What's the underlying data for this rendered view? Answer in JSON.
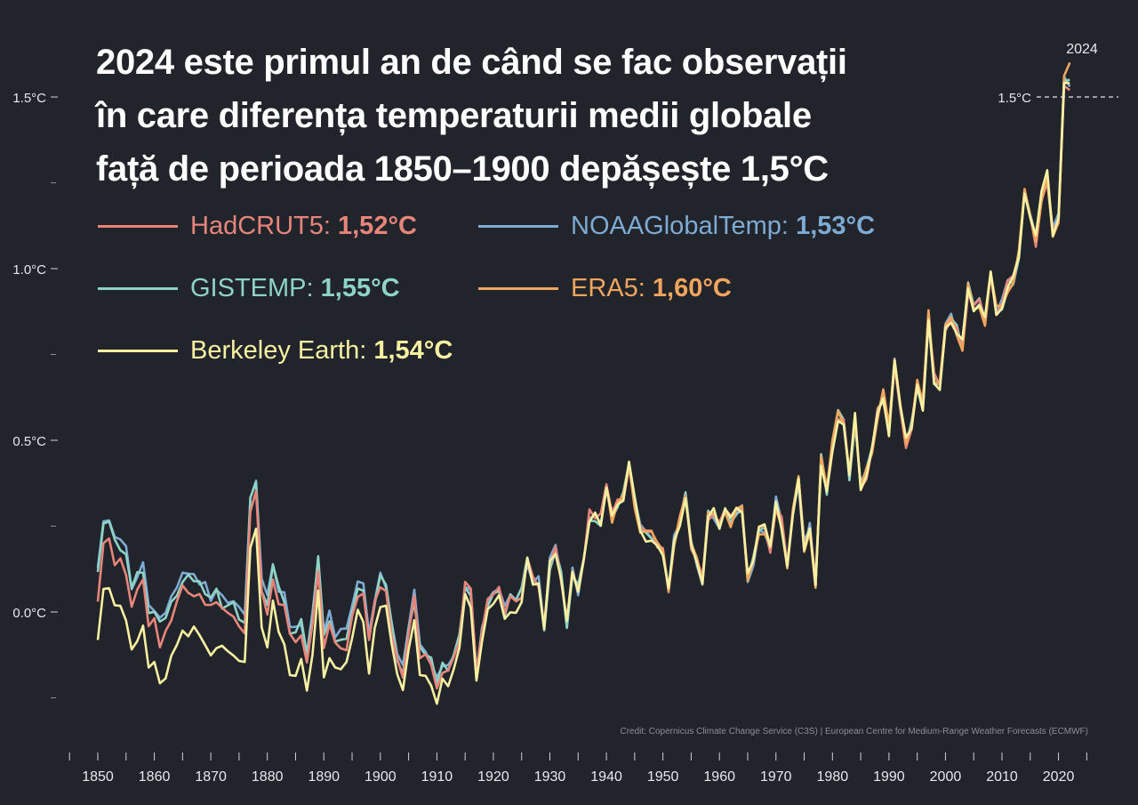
{
  "title_lines": [
    "2024 este primul an de când se fac observații",
    "în care diferența temperaturii medii globale",
    "față de perioada 1850–1900 depășește 1,5°C"
  ],
  "credit": "Credit:  Copernicus Climate Change Service (C3S) | European Centre for Medium-Range Weather Forecasts (ECMWF)",
  "legend": [
    {
      "name": "HadCRUT5:",
      "value": "1,52°C",
      "color": "#e8857b"
    },
    {
      "name": "NOAAGlobalTemp:",
      "value": "1,53°C",
      "color": "#7eabd4"
    },
    {
      "name": "GISTEMP:",
      "value": "1,55°C",
      "color": "#8ed4c6"
    },
    {
      "name": "ERA5:",
      "value": "1,60°C",
      "color": "#f2a55c"
    },
    {
      "name": "Berkeley Earth:",
      "value": "1,54°C",
      "color": "#f6f0a0"
    }
  ],
  "chart_data": {
    "type": "line",
    "title": "2024 este primul an de când se fac observații în care diferența temperaturii medii globale față de perioada 1850–1900 depășește 1,5°C",
    "xlabel": "",
    "ylabel": "",
    "xlim": [
      1850,
      2024
    ],
    "ylim": [
      -0.25,
      1.6
    ],
    "x_ticks": [
      1850,
      1860,
      1870,
      1880,
      1890,
      1900,
      1910,
      1920,
      1930,
      1940,
      1950,
      1960,
      1970,
      1980,
      1990,
      2000,
      2010,
      2020
    ],
    "y_ticks": [
      {
        "value": 0.0,
        "label": "0.0°C"
      },
      {
        "value": 0.5,
        "label": "0.5°C"
      },
      {
        "value": 1.0,
        "label": "1.0°C"
      },
      {
        "value": 1.5,
        "label": "1.5°C"
      }
    ],
    "y_minor_ticks": [
      -0.25,
      0.25,
      0.75,
      1.25
    ],
    "reference_line": {
      "value": 1.5,
      "label": "1.5°C"
    },
    "end_label": "2024",
    "grid": false,
    "legend_position": "top-left",
    "base_years": [
      1850,
      2024
    ],
    "base": [
      -0.05,
      0.1,
      0.13,
      0.06,
      0.05,
      0.03,
      -0.08,
      -0.04,
      -0.01,
      -0.12,
      -0.12,
      -0.17,
      -0.15,
      -0.1,
      -0.06,
      -0.02,
      -0.02,
      -0.02,
      -0.04,
      -0.05,
      -0.07,
      -0.06,
      -0.08,
      -0.09,
      -0.09,
      -0.11,
      -0.13,
      0.23,
      0.28,
      -0.02,
      -0.06,
      0.05,
      -0.02,
      -0.05,
      -0.14,
      -0.15,
      -0.12,
      -0.21,
      -0.09,
      0.07,
      -0.16,
      -0.09,
      -0.14,
      -0.14,
      -0.14,
      -0.06,
      0.01,
      0.01,
      -0.14,
      -0.02,
      0.05,
      0.03,
      -0.09,
      -0.18,
      -0.21,
      -0.09,
      0.0,
      -0.16,
      -0.17,
      -0.19,
      -0.24,
      -0.2,
      -0.19,
      -0.17,
      -0.1,
      0.05,
      0.04,
      -0.21,
      -0.08,
      0.01,
      0.02,
      0.06,
      -0.01,
      0.02,
      0.02,
      0.05,
      0.14,
      0.08,
      0.09,
      -0.05,
      0.14,
      0.18,
      0.1,
      -0.04,
      0.11,
      0.06,
      0.16,
      0.28,
      0.28,
      0.27,
      0.36,
      0.28,
      0.32,
      0.34,
      0.44,
      0.32,
      0.24,
      0.22,
      0.22,
      0.19,
      0.17,
      0.07,
      0.21,
      0.27,
      0.34,
      0.19,
      0.15,
      0.09,
      0.28,
      0.29,
      0.26,
      0.3,
      0.26,
      0.29,
      0.3,
      0.1,
      0.15,
      0.23,
      0.24,
      0.19,
      0.32,
      0.26,
      0.14,
      0.3,
      0.38,
      0.19,
      0.25,
      0.09,
      0.44,
      0.36,
      0.48,
      0.57,
      0.56,
      0.4,
      0.56,
      0.37,
      0.4,
      0.47,
      0.58,
      0.63,
      0.53,
      0.72,
      0.6,
      0.49,
      0.55,
      0.66,
      0.6,
      0.86,
      0.68,
      0.66,
      0.82,
      0.85,
      0.82,
      0.78,
      0.94,
      0.89,
      0.9,
      0.84,
      0.98,
      0.88,
      0.9,
      0.95,
      0.97,
      1.05,
      1.23,
      1.14,
      1.08,
      1.21,
      1.27,
      1.11,
      1.15,
      1.55,
      1.57
    ],
    "series": [
      {
        "name": "HadCRUT5",
        "offset_early": 0.1,
        "noise": 0.02
      },
      {
        "name": "NOAAGlobalTemp",
        "offset_early": 0.16,
        "noise": 0.02
      },
      {
        "name": "GISTEMP",
        "offset_early": 0.15,
        "noise": 0.02
      },
      {
        "name": "ERA5",
        "offset_early": 0.02,
        "noise": 0.02,
        "start_year": 1940
      },
      {
        "name": "Berkeley Earth",
        "offset_early": -0.05,
        "noise": 0.02
      }
    ],
    "series_end_values": [
      1.52,
      1.53,
      1.55,
      1.6,
      1.54
    ]
  }
}
